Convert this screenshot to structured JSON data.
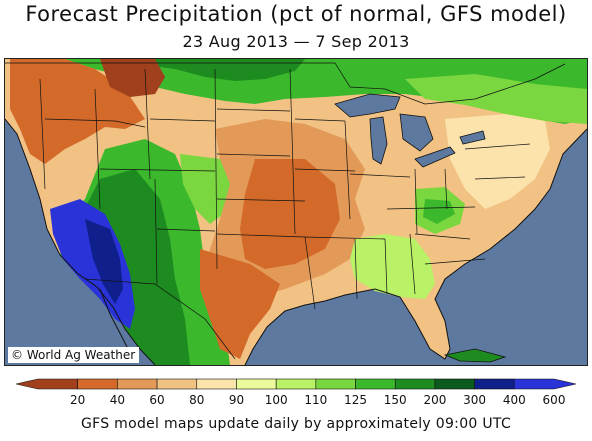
{
  "map": {
    "title": "Forecast Precipitation (pct of normal, GFS model)",
    "date_range": "23 Aug 2013 — 7 Sep 2013",
    "copyright": "© World Ag Weather",
    "footer": "GFS model maps update daily by approximately 09:00 UTC"
  },
  "legend": {
    "ticks": [
      "20",
      "40",
      "60",
      "80",
      "90",
      "100",
      "110",
      "125",
      "150",
      "200",
      "300",
      "400",
      "600"
    ],
    "colors": [
      "#a0401c",
      "#d36a2a",
      "#e39a58",
      "#f1c283",
      "#fbe3ab",
      "#eafc9c",
      "#b9f167",
      "#7ad73f",
      "#3cb82c",
      "#1d8b20",
      "#0b5a1e",
      "#0f1f8c",
      "#2a33d8"
    ]
  },
  "colors": {
    "ocean": "#5d79a0",
    "lake": "#5d79a0",
    "border": "#111111"
  }
}
